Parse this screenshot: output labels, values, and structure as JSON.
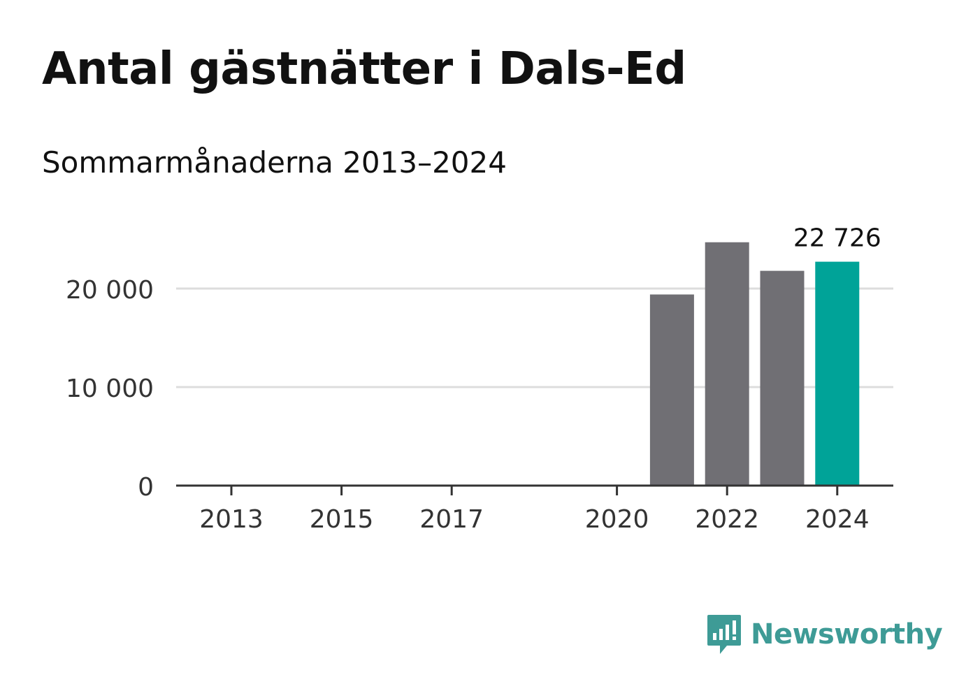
{
  "header": {
    "title": "Antal gästnätter i Dals-Ed",
    "subtitle": "Sommarmånaderna 2013–2024"
  },
  "brand": {
    "name": "Newsworthy",
    "color": "#3e9b96",
    "icon": "newsworthy-logo-icon"
  },
  "colors": {
    "bar": "#706f74",
    "highlight": "#00a398",
    "grid": "#dddddd",
    "axis": "#333333",
    "text": "#333333"
  },
  "chart_data": {
    "type": "bar",
    "categories": [
      "2013",
      "2014",
      "2015",
      "2016",
      "2017",
      "2018",
      "2019",
      "2020",
      "2021",
      "2022",
      "2023",
      "2024"
    ],
    "values": [
      null,
      null,
      null,
      null,
      null,
      null,
      null,
      null,
      19400,
      24700,
      21800,
      22726
    ],
    "highlight_index": 11,
    "data_labels": [
      {
        "index": 11,
        "text": "22 726"
      }
    ],
    "x_tick_labels": [
      "2013",
      "2015",
      "2017",
      "2020",
      "2022",
      "2024"
    ],
    "y_ticks": [
      0,
      10000,
      20000
    ],
    "y_tick_labels": [
      "0",
      "10 000",
      "20 000"
    ],
    "ylim": [
      0,
      25000
    ],
    "xlabel": "",
    "ylabel": "",
    "grid": true
  }
}
